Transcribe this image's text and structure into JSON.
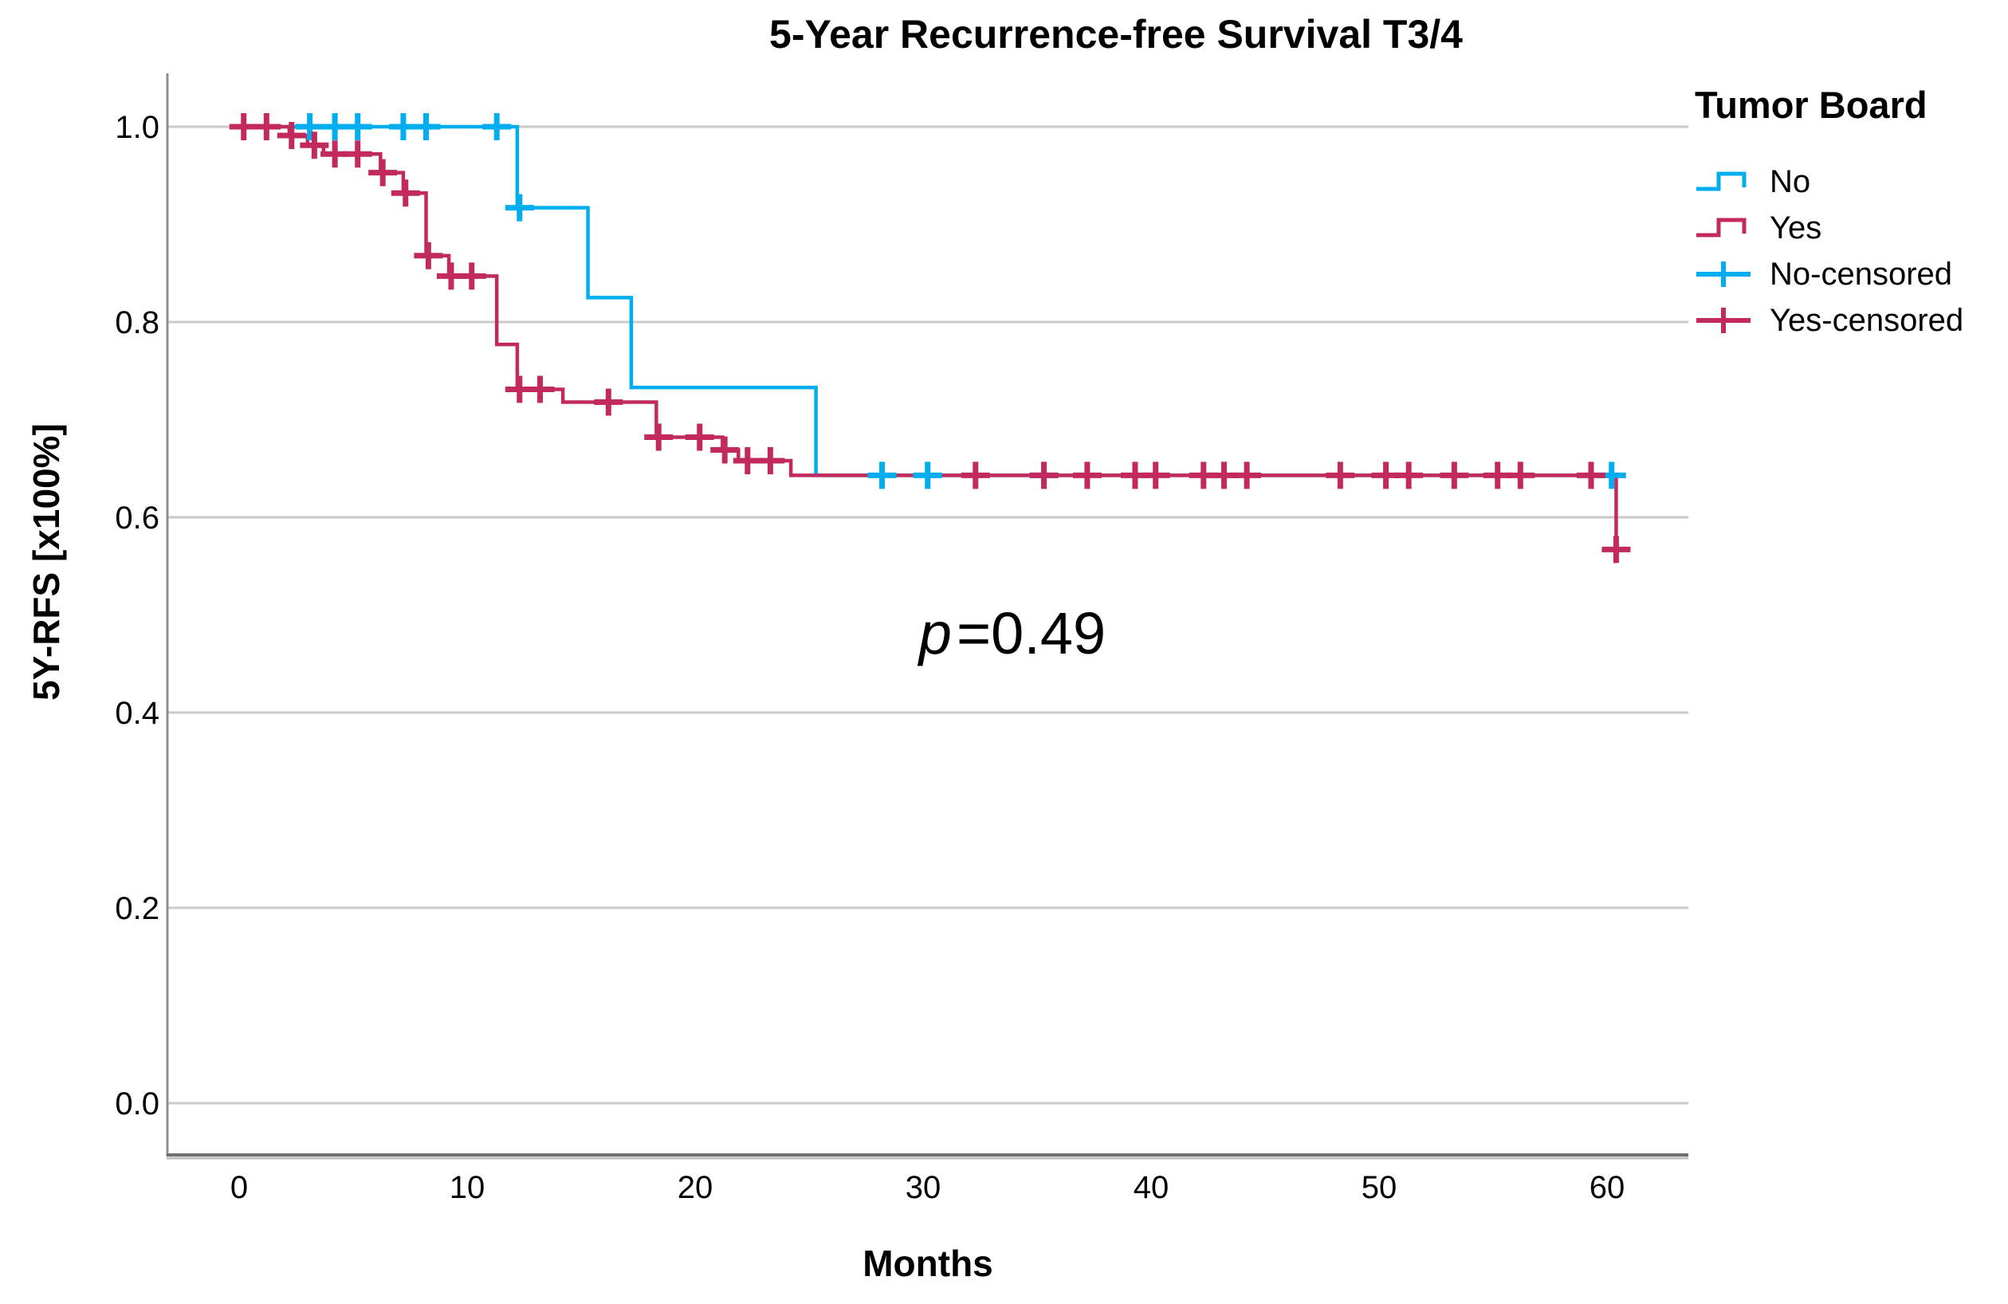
{
  "title": "5-Year Recurrence-free Survival T3/4",
  "annotation": {
    "p_italic": "p",
    "p_rest": "=0.49"
  },
  "axes": {
    "x_label": "Months",
    "y_label": "5Y-RFS [x100%]",
    "x_tick_labels": [
      "0",
      "10",
      "20",
      "30",
      "40",
      "50",
      "60"
    ],
    "y_tick_labels": [
      "1.0",
      "0.8",
      "0.6",
      "0.4",
      "0.2",
      "0.0"
    ]
  },
  "legend": {
    "title": "Tumor Board",
    "entries": [
      {
        "label": "No",
        "type": "step",
        "color_key": "no"
      },
      {
        "label": "Yes",
        "type": "step",
        "color_key": "yes"
      },
      {
        "label": "No-censored",
        "type": "censor",
        "color_key": "no"
      },
      {
        "label": "Yes-censored",
        "type": "censor",
        "color_key": "yes"
      }
    ]
  },
  "colors": {
    "no": "#00AEEF",
    "yes": "#C22A5E",
    "grid": "#CACACA",
    "axis": "#8F8F8F",
    "axis_bottom": "#6F6F6F",
    "axis_bottom_shadow": "#C0C0C0",
    "tick_text": "#000000"
  },
  "chart_data": {
    "type": "line",
    "subtype": "kaplan-meier-step",
    "title": "5-Year Recurrence-free Survival T3/4",
    "xlabel": "Months",
    "ylabel": "5Y-RFS [x100%]",
    "x_ticks": [
      0,
      10,
      20,
      30,
      40,
      50,
      60
    ],
    "y_ticks": [
      1.0,
      0.8,
      0.6,
      0.4,
      0.2,
      0.0
    ],
    "xlim": [
      -3.2,
      63.6
    ],
    "ylim": [
      -0.06,
      1.06
    ],
    "grid": "horizontal",
    "legend_position": "right",
    "annotation": "p=0.49",
    "series": [
      {
        "name": "No",
        "color_key": "no",
        "kind": "step-curve",
        "vertices": [
          [
            0,
            1.0
          ],
          [
            12.2,
            1.0
          ],
          [
            12.2,
            0.917
          ],
          [
            15.3,
            0.917
          ],
          [
            15.3,
            0.825
          ],
          [
            17.2,
            0.825
          ],
          [
            17.2,
            0.733
          ],
          [
            25.3,
            0.733
          ],
          [
            25.3,
            0.643
          ],
          [
            60.3,
            0.643
          ]
        ]
      },
      {
        "name": "Yes",
        "color_key": "yes",
        "kind": "step-curve",
        "vertices": [
          [
            0,
            1.0
          ],
          [
            2.2,
            1.0
          ],
          [
            2.2,
            0.991
          ],
          [
            3.0,
            0.991
          ],
          [
            3.0,
            0.981
          ],
          [
            3.7,
            0.981
          ],
          [
            3.7,
            0.972
          ],
          [
            6.2,
            0.972
          ],
          [
            6.2,
            0.953
          ],
          [
            7.2,
            0.953
          ],
          [
            7.2,
            0.932
          ],
          [
            8.2,
            0.932
          ],
          [
            8.2,
            0.868
          ],
          [
            9.2,
            0.868
          ],
          [
            9.2,
            0.847
          ],
          [
            11.3,
            0.847
          ],
          [
            11.3,
            0.777
          ],
          [
            12.2,
            0.777
          ],
          [
            12.2,
            0.731
          ],
          [
            14.2,
            0.731
          ],
          [
            14.2,
            0.718
          ],
          [
            18.3,
            0.718
          ],
          [
            18.3,
            0.682
          ],
          [
            21.2,
            0.682
          ],
          [
            21.2,
            0.669
          ],
          [
            21.9,
            0.669
          ],
          [
            21.9,
            0.658
          ],
          [
            24.2,
            0.658
          ],
          [
            24.2,
            0.643
          ],
          [
            60.4,
            0.643
          ],
          [
            60.4,
            0.567
          ]
        ]
      },
      {
        "name": "No-censored",
        "color_key": "no",
        "kind": "censor-marks",
        "marks": [
          [
            3.1,
            1.0
          ],
          [
            4.2,
            1.0
          ],
          [
            5.2,
            1.0
          ],
          [
            7.2,
            1.0
          ],
          [
            8.2,
            1.0
          ],
          [
            11.3,
            1.0
          ],
          [
            12.3,
            0.917
          ],
          [
            28.2,
            0.643
          ],
          [
            30.2,
            0.643
          ],
          [
            35.3,
            0.643
          ],
          [
            60.2,
            0.643
          ]
        ]
      },
      {
        "name": "Yes-censored",
        "color_key": "yes",
        "kind": "censor-marks",
        "marks": [
          [
            0.2,
            1.0
          ],
          [
            1.2,
            1.0
          ],
          [
            2.3,
            0.991
          ],
          [
            3.3,
            0.981
          ],
          [
            4.2,
            0.972
          ],
          [
            5.2,
            0.972
          ],
          [
            6.3,
            0.953
          ],
          [
            7.3,
            0.932
          ],
          [
            8.3,
            0.868
          ],
          [
            9.3,
            0.847
          ],
          [
            10.2,
            0.847
          ],
          [
            12.3,
            0.731
          ],
          [
            13.2,
            0.731
          ],
          [
            16.2,
            0.718
          ],
          [
            18.4,
            0.682
          ],
          [
            20.2,
            0.682
          ],
          [
            21.3,
            0.669
          ],
          [
            22.3,
            0.658
          ],
          [
            23.3,
            0.658
          ],
          [
            32.3,
            0.643
          ],
          [
            35.3,
            0.643
          ],
          [
            37.2,
            0.643
          ],
          [
            39.3,
            0.643
          ],
          [
            40.2,
            0.643
          ],
          [
            42.3,
            0.643
          ],
          [
            43.2,
            0.643
          ],
          [
            44.2,
            0.643
          ],
          [
            48.3,
            0.643
          ],
          [
            50.3,
            0.643
          ],
          [
            51.3,
            0.643
          ],
          [
            53.3,
            0.643
          ],
          [
            55.2,
            0.643
          ],
          [
            56.2,
            0.643
          ],
          [
            59.3,
            0.643
          ],
          [
            60.4,
            0.567
          ]
        ]
      }
    ]
  }
}
